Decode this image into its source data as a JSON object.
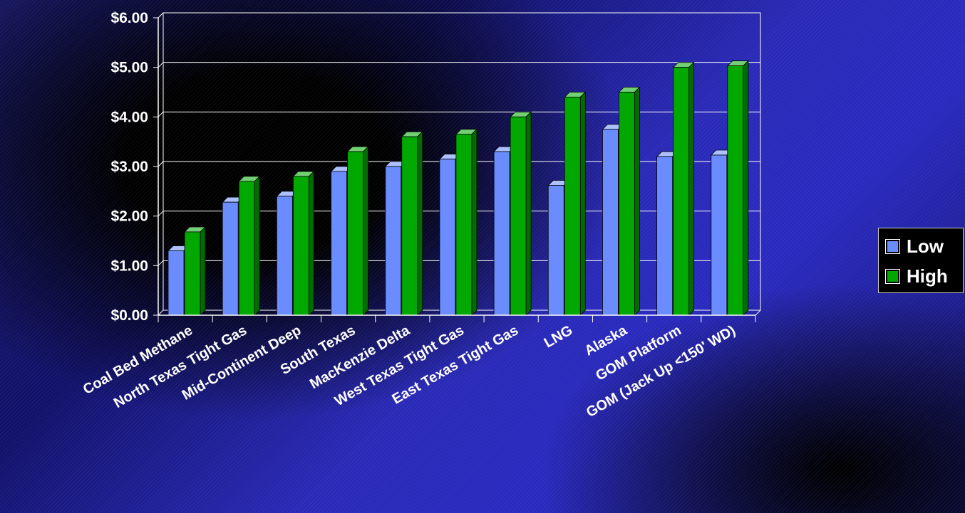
{
  "chart_data": {
    "type": "bar",
    "categories": [
      "Coal Bed Methane",
      "North Texas Tight Gas",
      "Mid-Continent Deep",
      "South Texas",
      "MacKenzie Delta",
      "West Texas Tight Gas",
      "East Texas Tight Gas",
      "LNG",
      "Alaska",
      "GOM Platform",
      "GOM (Jack Up <150' WD)"
    ],
    "series": [
      {
        "name": "Low",
        "color": "#6a8cff",
        "values": [
          1.3,
          2.28,
          2.4,
          2.9,
          3.0,
          3.15,
          3.3,
          2.62,
          3.75,
          3.2,
          3.23
        ]
      },
      {
        "name": "High",
        "color": "#00a800",
        "values": [
          1.68,
          2.7,
          2.8,
          3.3,
          3.6,
          3.65,
          4.0,
          4.4,
          4.5,
          5.0,
          5.03
        ]
      }
    ],
    "ylim": [
      0,
      6
    ],
    "yticks": [
      "$0.00",
      "$1.00",
      "$2.00",
      "$3.00",
      "$4.00",
      "$5.00",
      "$6.00"
    ],
    "grid": true,
    "legend_position": "right"
  }
}
